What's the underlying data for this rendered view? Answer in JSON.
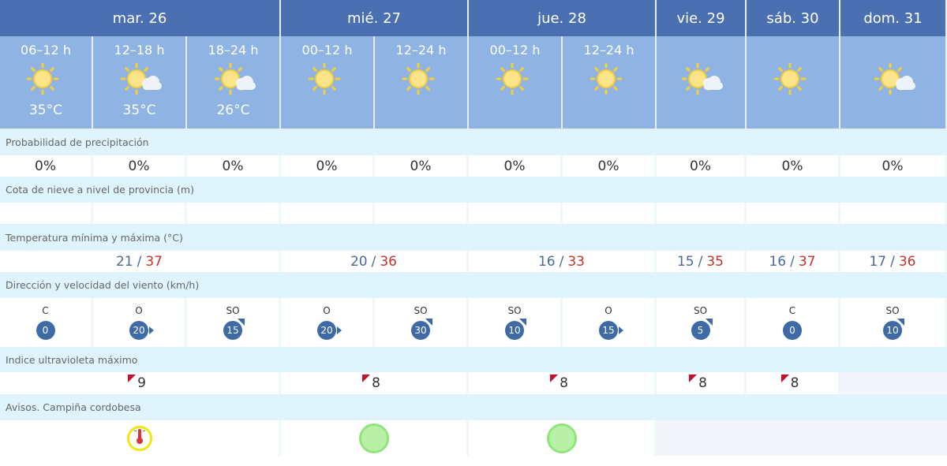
{
  "days": [
    {
      "label": "mar. 26",
      "span": 3
    },
    {
      "label": "mié. 27",
      "span": 2
    },
    {
      "label": "jue. 28",
      "span": 2
    },
    {
      "label": "vie. 29",
      "span": 1
    },
    {
      "label": "sáb. 30",
      "span": 1
    },
    {
      "label": "dom. 31",
      "span": 1
    }
  ],
  "periods": [
    {
      "hours": "06–12 h",
      "icon": "sun-icon",
      "temp": "35°C"
    },
    {
      "hours": "12–18 h",
      "icon": "sun-cloud-icon",
      "temp": "35°C"
    },
    {
      "hours": "18–24 h",
      "icon": "sun-cloud-icon",
      "temp": "26°C"
    },
    {
      "hours": "00–12 h",
      "icon": "sun-icon",
      "temp": ""
    },
    {
      "hours": "12–24 h",
      "icon": "sun-icon",
      "temp": ""
    },
    {
      "hours": "00–12 h",
      "icon": "sun-icon",
      "temp": ""
    },
    {
      "hours": "12–24 h",
      "icon": "sun-icon",
      "temp": ""
    },
    {
      "hours": "",
      "icon": "sun-cloud-icon",
      "temp": ""
    },
    {
      "hours": "",
      "icon": "sun-icon",
      "temp": ""
    },
    {
      "hours": "",
      "icon": "sun-cloud-icon",
      "temp": ""
    }
  ],
  "labels": {
    "precip": "Probabilidad de precipitación",
    "snow": "Cota de nieve a nivel de provincia (m)",
    "temp": "Temperatura mínima y máxima (°C)",
    "wind": "Dirección y velocidad del viento (km/h)",
    "uv": "Indice ultravioleta máximo",
    "avisos": "Avisos. Campiña cordobesa"
  },
  "precip": [
    "0%",
    "0%",
    "0%",
    "0%",
    "0%",
    "0%",
    "0%",
    "0%",
    "0%",
    "0%"
  ],
  "snow": [
    "",
    "",
    "",
    "",
    "",
    "",
    "",
    "",
    "",
    ""
  ],
  "temps": [
    {
      "min": "21",
      "max": "37"
    },
    {
      "min": "20",
      "max": "36"
    },
    {
      "min": "16",
      "max": "33"
    },
    {
      "min": "15",
      "max": "35"
    },
    {
      "min": "16",
      "max": "37"
    },
    {
      "min": "17",
      "max": "36"
    }
  ],
  "wind": [
    {
      "dir": "C",
      "speed": "0"
    },
    {
      "dir": "O",
      "speed": "20"
    },
    {
      "dir": "SO",
      "speed": "15"
    },
    {
      "dir": "O",
      "speed": "20"
    },
    {
      "dir": "SO",
      "speed": "30"
    },
    {
      "dir": "SO",
      "speed": "10"
    },
    {
      "dir": "O",
      "speed": "15"
    },
    {
      "dir": "SO",
      "speed": "5"
    },
    {
      "dir": "C",
      "speed": "0"
    },
    {
      "dir": "SO",
      "speed": "10"
    }
  ],
  "uv": [
    "9",
    "8",
    "8",
    "8",
    "8",
    ""
  ],
  "avisos": [
    {
      "level": "yellow",
      "icon": "high-temperature-icon"
    },
    {
      "level": "green"
    },
    {
      "level": "green"
    },
    {
      "level": ""
    },
    {
      "level": ""
    },
    {
      "level": ""
    }
  ],
  "colors": {
    "header": "#4a70b2",
    "subheader": "#8fb4e4",
    "label_row": "#dff4fc",
    "max_temp": "#c8312b",
    "min_temp": "#4a6a9a",
    "wind_badge": "#3e6aa6",
    "uv_marker": "#c8102e"
  }
}
